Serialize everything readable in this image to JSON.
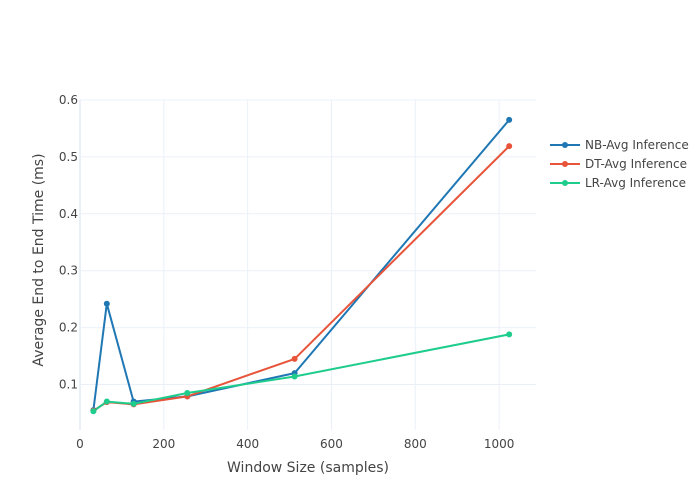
{
  "chart_data": {
    "type": "line",
    "title": "",
    "xlabel": "Window Size (samples)",
    "ylabel": "Average End to End Time (ms)",
    "xlim": [
      0,
      1088
    ],
    "ylim": [
      0.02,
      0.6
    ],
    "x_ticks": [
      0,
      200,
      400,
      600,
      800,
      1000
    ],
    "y_ticks": [
      0.1,
      0.2,
      0.3,
      0.4,
      0.5,
      0.6
    ],
    "grid": true,
    "legend_position": "right",
    "x": [
      32,
      64,
      128,
      256,
      512,
      1024
    ],
    "series": [
      {
        "name": "NB-Avg Inference",
        "color": "#1f77b4",
        "values": [
          0.055,
          0.242,
          0.07,
          0.079,
          0.12,
          0.565
        ]
      },
      {
        "name": "DT-Avg Inference",
        "color": "#e8543a",
        "values": [
          0.054,
          0.069,
          0.065,
          0.079,
          0.145,
          0.519
        ]
      },
      {
        "name": "LR-Avg Inference",
        "color": "#1ecc8c",
        "values": [
          0.053,
          0.07,
          0.066,
          0.085,
          0.114,
          0.188
        ]
      }
    ]
  }
}
